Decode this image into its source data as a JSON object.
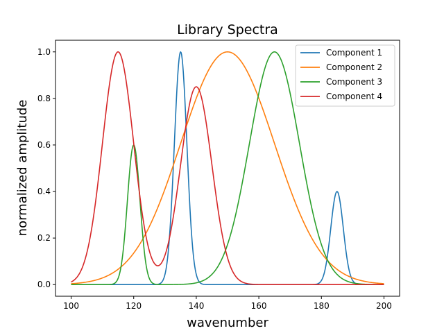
{
  "chart_data": {
    "type": "line",
    "title": "Library Spectra",
    "xlabel": "wavenumber",
    "ylabel": "normalized amplitude",
    "xlim": [
      95,
      205
    ],
    "ylim": [
      -0.05,
      1.05
    ],
    "xticks": [
      100,
      120,
      140,
      160,
      180,
      200
    ],
    "yticks": [
      0.0,
      0.2,
      0.4,
      0.6,
      0.8,
      1.0
    ],
    "grid": false,
    "legend_position": "top-right",
    "series": [
      {
        "name": "Component 1",
        "color": "#1f77b4",
        "peaks": [
          {
            "center": 135,
            "sigma": 2.0,
            "amplitude": 1.0
          },
          {
            "center": 185,
            "sigma": 2.0,
            "amplitude": 0.4
          }
        ]
      },
      {
        "name": "Component 2",
        "color": "#ff7f0e",
        "peaks": [
          {
            "center": 150,
            "sigma": 15.0,
            "amplitude": 1.0
          }
        ]
      },
      {
        "name": "Component 3",
        "color": "#2ca02c",
        "peaks": [
          {
            "center": 120,
            "sigma": 2.0,
            "amplitude": 0.6
          },
          {
            "center": 165,
            "sigma": 8.0,
            "amplitude": 1.0
          }
        ]
      },
      {
        "name": "Component 4",
        "color": "#d62728",
        "peaks": [
          {
            "center": 115,
            "sigma": 5.0,
            "amplitude": 1.0
          },
          {
            "center": 140,
            "sigma": 5.0,
            "amplitude": 0.85
          }
        ]
      }
    ]
  }
}
